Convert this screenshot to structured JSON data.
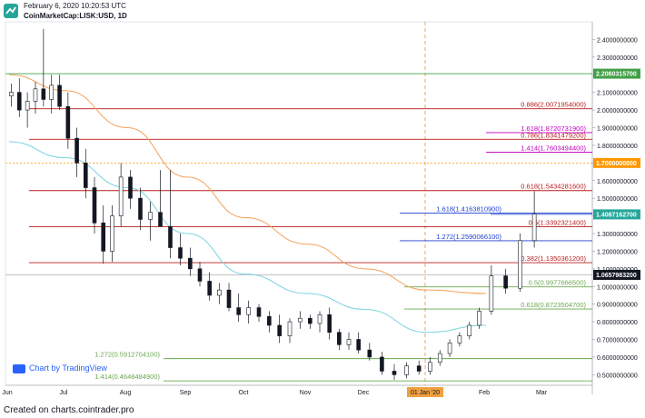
{
  "header": {
    "timestamp": "February 6, 2020 10:20:53 UTC",
    "symbol": "CoinMarketCap:LISK:USD, 1D"
  },
  "watermark": "Chart by TradingView",
  "footer": "Created on charts.cointrader.pro",
  "chart_data": {
    "type": "candlestick",
    "title": "CoinMarketCap:LISK:USD, 1D",
    "x_ticks": [
      "Jun",
      "Jul",
      "Aug",
      "Sep",
      "Oct",
      "Nov",
      "Dec",
      "01 Jan '20",
      "Feb",
      "Mar"
    ],
    "y_ticks": [
      "2.4000000000",
      "2.3000000000",
      "2.2000000000",
      "2.1000000000",
      "2.0000000000",
      "1.9000000000",
      "1.8000000000",
      "1.7000000000",
      "1.6000000000",
      "1.5000000000",
      "1.4000000000",
      "1.3000000000",
      "1.2000000000",
      "1.1000000000",
      "1.0000000000",
      "0.9000000000",
      "0.8000000000",
      "0.7000000000",
      "0.6000000000",
      "0.5000000000"
    ],
    "ylim": [
      0.44,
      2.5
    ],
    "price_tags": [
      {
        "label": "2.2060315700",
        "value": 2.20603157,
        "color": "#43a047"
      },
      {
        "label": "1.7000000000",
        "value": 1.7,
        "color": "#ff9800"
      },
      {
        "label": "1.4087162700",
        "value": 1.40871627,
        "color": "#26a69a"
      },
      {
        "label": "1.0657983200",
        "value": 1.06579832,
        "color": "#131722"
      }
    ],
    "levels": [
      {
        "label": "0.886(2.0071954000)",
        "value": 2.0071954,
        "color": "#b71c1c",
        "label_color": "#b71c1c"
      },
      {
        "label": "1.618(1.8720731900)",
        "value": 1.87207319,
        "color": "#c000c0",
        "label_color": "#c000c0"
      },
      {
        "label": "0.786(1.8341479200)",
        "value": 1.83414792,
        "color": "#b71c1c",
        "label_color": "#b71c1c"
      },
      {
        "label": "1.414(1.7603494400)",
        "value": 1.76034944,
        "color": "#c000c0",
        "label_color": "#c000c0"
      },
      {
        "label": "0.618(1.5434281600)",
        "value": 1.54342816,
        "color": "#b71c1c",
        "label_color": "#b71c1c"
      },
      {
        "label": "1.618(1.4163810900)",
        "value": 1.41638109,
        "color": "#1e3fd0",
        "label_color": "#1e3fd0"
      },
      {
        "label": "0.5(1.3392321400)",
        "value": 1.33923214,
        "color": "#b71c1c",
        "label_color": "#b71c1c"
      },
      {
        "label": "1.272(1.2590066100)",
        "value": 1.25900661,
        "color": "#1e3fd0",
        "label_color": "#1e3fd0"
      },
      {
        "label": "0.382(1.1350361200)",
        "value": 1.13503612,
        "color": "#b71c1c",
        "label_color": "#b71c1c"
      },
      {
        "label": "0.5(0.9977666500)",
        "value": 0.99776665,
        "color": "#6aa84f",
        "label_color": "#6aa84f"
      },
      {
        "label": "0.618(0.8723504700)",
        "value": 0.87235047,
        "color": "#6aa84f",
        "label_color": "#6aa84f"
      },
      {
        "label": "1.272(0.5912704100)",
        "value": 0.59127041,
        "color": "#6aa84f",
        "label_color": "#6aa84f"
      },
      {
        "label": "1.414(0.4648484900)",
        "value": 0.46484849,
        "color": "#6aa84f",
        "label_color": "#6aa84f"
      }
    ],
    "ma_orange": [
      {
        "x": "Jun",
        "y": 2.2
      },
      {
        "x": "Jul",
        "y": 2.11
      },
      {
        "x": "Aug",
        "y": 1.9
      },
      {
        "x": "Sep",
        "y": 1.62
      },
      {
        "x": "Oct",
        "y": 1.39
      },
      {
        "x": "Nov",
        "y": 1.24
      },
      {
        "x": "Dec",
        "y": 1.1
      },
      {
        "x": "01 Jan '20",
        "y": 0.98
      },
      {
        "x": "Feb",
        "y": 0.96
      }
    ],
    "ma_blue": [
      {
        "x": "Jun",
        "y": 1.82
      },
      {
        "x": "Jul",
        "y": 1.73
      },
      {
        "x": "Aug",
        "y": 1.56
      },
      {
        "x": "Sep",
        "y": 1.3
      },
      {
        "x": "Oct",
        "y": 1.07
      },
      {
        "x": "Nov",
        "y": 0.96
      },
      {
        "x": "Dec",
        "y": 0.87
      },
      {
        "x": "01 Jan '20",
        "y": 0.74
      },
      {
        "x": "Feb",
        "y": 0.78
      }
    ],
    "candles": [
      {
        "x": "Jun",
        "o": 2.08,
        "h": 2.15,
        "l": 2.02,
        "c": 2.1
      },
      {
        "x": "Jun",
        "o": 2.1,
        "h": 2.18,
        "l": 1.96,
        "c": 2.0
      },
      {
        "x": "Jun",
        "o": 2.0,
        "h": 2.1,
        "l": 1.9,
        "c": 2.05
      },
      {
        "x": "Jun",
        "o": 2.05,
        "h": 2.16,
        "l": 1.98,
        "c": 2.12
      },
      {
        "x": "Jun",
        "o": 2.12,
        "h": 2.46,
        "l": 2.02,
        "c": 2.06
      },
      {
        "x": "Jun",
        "o": 2.06,
        "h": 2.2,
        "l": 1.98,
        "c": 2.14
      },
      {
        "x": "Jun",
        "o": 2.14,
        "h": 2.2,
        "l": 2.0,
        "c": 2.02
      },
      {
        "x": "Jul",
        "o": 2.02,
        "h": 2.1,
        "l": 1.78,
        "c": 1.84
      },
      {
        "x": "Jul",
        "o": 1.84,
        "h": 1.9,
        "l": 1.62,
        "c": 1.7
      },
      {
        "x": "Jul",
        "o": 1.7,
        "h": 1.78,
        "l": 1.5,
        "c": 1.56
      },
      {
        "x": "Jul",
        "o": 1.56,
        "h": 1.62,
        "l": 1.3,
        "c": 1.36
      },
      {
        "x": "Jul",
        "o": 1.36,
        "h": 1.46,
        "l": 1.13,
        "c": 1.2
      },
      {
        "x": "Jul",
        "o": 1.2,
        "h": 1.46,
        "l": 1.14,
        "c": 1.4
      },
      {
        "x": "Jul",
        "o": 1.4,
        "h": 1.7,
        "l": 1.34,
        "c": 1.62
      },
      {
        "x": "Aug",
        "o": 1.62,
        "h": 1.66,
        "l": 1.44,
        "c": 1.5
      },
      {
        "x": "Aug",
        "o": 1.5,
        "h": 1.56,
        "l": 1.32,
        "c": 1.38
      },
      {
        "x": "Aug",
        "o": 1.38,
        "h": 1.48,
        "l": 1.26,
        "c": 1.42
      },
      {
        "x": "Aug",
        "o": 1.42,
        "h": 1.66,
        "l": 1.36,
        "c": 1.34
      },
      {
        "x": "Aug",
        "o": 1.34,
        "h": 1.66,
        "l": 1.16,
        "c": 1.22
      },
      {
        "x": "Aug",
        "o": 1.22,
        "h": 1.3,
        "l": 1.12,
        "c": 1.16
      },
      {
        "x": "Sep",
        "o": 1.16,
        "h": 1.22,
        "l": 1.06,
        "c": 1.1
      },
      {
        "x": "Sep",
        "o": 1.1,
        "h": 1.14,
        "l": 1.0,
        "c": 1.03
      },
      {
        "x": "Sep",
        "o": 1.03,
        "h": 1.08,
        "l": 0.92,
        "c": 0.95
      },
      {
        "x": "Sep",
        "o": 0.95,
        "h": 1.02,
        "l": 0.9,
        "c": 0.98
      },
      {
        "x": "Sep",
        "o": 0.98,
        "h": 1.02,
        "l": 0.86,
        "c": 0.88
      },
      {
        "x": "Sep",
        "o": 0.88,
        "h": 0.96,
        "l": 0.8,
        "c": 0.84
      },
      {
        "x": "Oct",
        "o": 0.84,
        "h": 0.92,
        "l": 0.79,
        "c": 0.88
      },
      {
        "x": "Oct",
        "o": 0.88,
        "h": 0.9,
        "l": 0.8,
        "c": 0.83
      },
      {
        "x": "Oct",
        "o": 0.83,
        "h": 0.86,
        "l": 0.74,
        "c": 0.78
      },
      {
        "x": "Oct",
        "o": 0.78,
        "h": 0.84,
        "l": 0.68,
        "c": 0.72
      },
      {
        "x": "Oct",
        "o": 0.72,
        "h": 0.82,
        "l": 0.68,
        "c": 0.8
      },
      {
        "x": "Oct",
        "o": 0.8,
        "h": 0.86,
        "l": 0.76,
        "c": 0.82
      },
      {
        "x": "Nov",
        "o": 0.82,
        "h": 0.84,
        "l": 0.76,
        "c": 0.79
      },
      {
        "x": "Nov",
        "o": 0.79,
        "h": 0.86,
        "l": 0.74,
        "c": 0.84
      },
      {
        "x": "Nov",
        "o": 0.84,
        "h": 0.88,
        "l": 0.7,
        "c": 0.74
      },
      {
        "x": "Nov",
        "o": 0.74,
        "h": 0.76,
        "l": 0.64,
        "c": 0.67
      },
      {
        "x": "Nov",
        "o": 0.67,
        "h": 0.74,
        "l": 0.64,
        "c": 0.7
      },
      {
        "x": "Nov",
        "o": 0.7,
        "h": 0.74,
        "l": 0.62,
        "c": 0.64
      },
      {
        "x": "Dec",
        "o": 0.64,
        "h": 0.68,
        "l": 0.58,
        "c": 0.6
      },
      {
        "x": "Dec",
        "o": 0.6,
        "h": 0.63,
        "l": 0.5,
        "c": 0.52
      },
      {
        "x": "Dec",
        "o": 0.52,
        "h": 0.56,
        "l": 0.47,
        "c": 0.5
      },
      {
        "x": "Dec",
        "o": 0.5,
        "h": 0.57,
        "l": 0.48,
        "c": 0.55
      },
      {
        "x": "Dec",
        "o": 0.55,
        "h": 0.58,
        "l": 0.5,
        "c": 0.52
      },
      {
        "x": "01 Jan '20",
        "o": 0.52,
        "h": 0.6,
        "l": 0.5,
        "c": 0.57
      },
      {
        "x": "01 Jan '20",
        "o": 0.57,
        "h": 0.64,
        "l": 0.55,
        "c": 0.62
      },
      {
        "x": "01 Jan '20",
        "o": 0.62,
        "h": 0.7,
        "l": 0.6,
        "c": 0.68
      },
      {
        "x": "01 Jan '20",
        "o": 0.68,
        "h": 0.74,
        "l": 0.66,
        "c": 0.72
      },
      {
        "x": "01 Jan '20",
        "o": 0.72,
        "h": 0.8,
        "l": 0.7,
        "c": 0.78
      },
      {
        "x": "01 Jan '20",
        "o": 0.78,
        "h": 0.88,
        "l": 0.76,
        "c": 0.86
      },
      {
        "x": "Feb",
        "o": 0.86,
        "h": 1.12,
        "l": 0.84,
        "c": 1.06
      },
      {
        "x": "Feb",
        "o": 1.06,
        "h": 1.1,
        "l": 0.96,
        "c": 0.99
      },
      {
        "x": "Feb",
        "o": 0.99,
        "h": 1.3,
        "l": 0.97,
        "c": 1.26
      },
      {
        "x": "Feb",
        "o": 1.26,
        "h": 1.54,
        "l": 1.22,
        "c": 1.41
      }
    ]
  }
}
